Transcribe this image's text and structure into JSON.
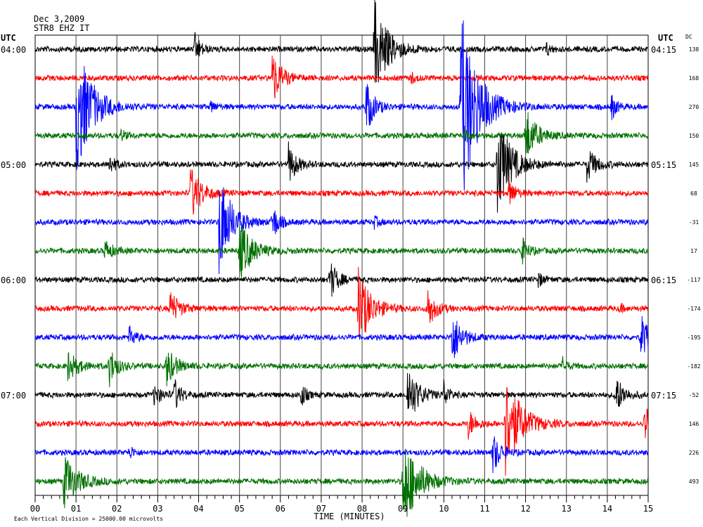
{
  "chart_data": {
    "type": "line",
    "title_date": "Dec 3,2009",
    "title_station": "STR8 EHZ IT",
    "left_axis_label": "UTC",
    "right_axis_label": "UTC",
    "dc_label": "DC",
    "xlabel": "TIME (MINUTES)",
    "footnote": "Each Vertical Division = 25000.00 microvolts",
    "x_ticks": [
      "00",
      "01",
      "02",
      "03",
      "04",
      "05",
      "06",
      "07",
      "08",
      "09",
      "10",
      "11",
      "12",
      "13",
      "14",
      "15"
    ],
    "xlim": [
      0,
      15
    ],
    "left_hour_labels": [
      {
        "row": 0,
        "text": "04:00"
      },
      {
        "row": 4,
        "text": "05:00"
      },
      {
        "row": 8,
        "text": "06:00"
      },
      {
        "row": 12,
        "text": "07:00"
      }
    ],
    "right_hour_labels": [
      {
        "row": 0,
        "text": "04:15"
      },
      {
        "row": 4,
        "text": "05:15"
      },
      {
        "row": 8,
        "text": "06:15"
      },
      {
        "row": 12,
        "text": "07:15"
      }
    ],
    "trace_colors": [
      "#000000",
      "#ff0000",
      "#0000ff",
      "#007000"
    ],
    "traces": [
      {
        "dc": "138",
        "events": [
          [
            3.9,
            22,
            0.4
          ],
          [
            8.3,
            70,
            0.9
          ],
          [
            12.5,
            10,
            0.3
          ]
        ]
      },
      {
        "dc": "168",
        "events": [
          [
            5.8,
            40,
            0.6
          ],
          [
            9.2,
            8,
            0.3
          ]
        ]
      },
      {
        "dc": "270",
        "events": [
          [
            1.0,
            100,
            1.0
          ],
          [
            4.3,
            8,
            0.3
          ],
          [
            8.1,
            40,
            0.5
          ],
          [
            10.4,
            150,
            1.1
          ],
          [
            14.1,
            20,
            0.3
          ]
        ]
      },
      {
        "dc": "150",
        "events": [
          [
            2.1,
            8,
            0.3
          ],
          [
            10.5,
            12,
            0.3
          ],
          [
            12.0,
            40,
            0.7
          ]
        ]
      },
      {
        "dc": "145",
        "events": [
          [
            1.8,
            15,
            0.4
          ],
          [
            6.2,
            30,
            0.5
          ],
          [
            11.3,
            75,
            0.9
          ],
          [
            13.5,
            25,
            0.6
          ]
        ]
      },
      {
        "dc": "68",
        "events": [
          [
            3.8,
            40,
            0.7
          ],
          [
            11.6,
            20,
            0.4
          ]
        ]
      },
      {
        "dc": "-31",
        "events": [
          [
            4.5,
            75,
            0.8
          ],
          [
            5.8,
            28,
            0.4
          ],
          [
            8.3,
            8,
            0.3
          ]
        ]
      },
      {
        "dc": "17",
        "events": [
          [
            1.7,
            15,
            0.5
          ],
          [
            5.0,
            45,
            0.8
          ],
          [
            11.9,
            20,
            0.4
          ]
        ]
      },
      {
        "dc": "-117",
        "events": [
          [
            7.2,
            30,
            0.5
          ],
          [
            12.3,
            12,
            0.3
          ]
        ]
      },
      {
        "dc": "-174",
        "events": [
          [
            3.3,
            25,
            0.6
          ],
          [
            7.9,
            60,
            0.8
          ],
          [
            9.6,
            30,
            0.5
          ],
          [
            14.3,
            8,
            0.2
          ]
        ]
      },
      {
        "dc": "-195",
        "events": [
          [
            2.3,
            15,
            0.4
          ],
          [
            10.2,
            40,
            0.6
          ],
          [
            14.8,
            35,
            0.6
          ]
        ]
      },
      {
        "dc": "-182",
        "events": [
          [
            0.8,
            20,
            0.7
          ],
          [
            1.8,
            30,
            0.5
          ],
          [
            3.2,
            30,
            0.6
          ],
          [
            12.9,
            12,
            0.3
          ]
        ]
      },
      {
        "dc": "-52",
        "events": [
          [
            2.9,
            15,
            0.5
          ],
          [
            3.4,
            25,
            0.4
          ],
          [
            6.5,
            20,
            0.3
          ],
          [
            9.1,
            45,
            0.7
          ],
          [
            10.0,
            20,
            0.3
          ],
          [
            14.2,
            30,
            0.5
          ]
        ]
      },
      {
        "dc": "146",
        "events": [
          [
            10.6,
            20,
            0.5
          ],
          [
            11.5,
            75,
            1.0
          ],
          [
            14.9,
            30,
            0.4
          ]
        ]
      },
      {
        "dc": "226",
        "events": [
          [
            2.3,
            10,
            0.3
          ],
          [
            11.2,
            30,
            0.5
          ]
        ]
      },
      {
        "dc": "493",
        "events": [
          [
            0.7,
            40,
            0.9
          ],
          [
            9.0,
            70,
            1.0
          ]
        ]
      }
    ]
  }
}
